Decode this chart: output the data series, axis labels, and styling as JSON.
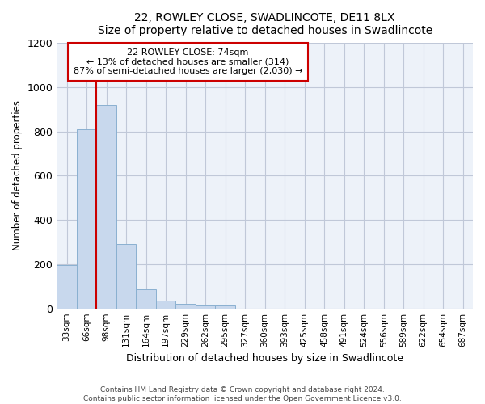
{
  "title": "22, ROWLEY CLOSE, SWADLINCOTE, DE11 8LX",
  "subtitle": "Size of property relative to detached houses in Swadlincote",
  "xlabel": "Distribution of detached houses by size in Swadlincote",
  "ylabel": "Number of detached properties",
  "bar_color": "#c8d8ed",
  "bar_edge_color": "#8ab0d0",
  "annotation_box_color": "#cc0000",
  "annotation_lines": [
    "22 ROWLEY CLOSE: 74sqm",
    "← 13% of detached houses are smaller (314)",
    "87% of semi-detached houses are larger (2,030) →"
  ],
  "footer1": "Contains HM Land Registry data © Crown copyright and database right 2024.",
  "footer2": "Contains public sector information licensed under the Open Government Licence v3.0.",
  "categories": [
    "33sqm",
    "66sqm",
    "98sqm",
    "131sqm",
    "164sqm",
    "197sqm",
    "229sqm",
    "262sqm",
    "295sqm",
    "327sqm",
    "360sqm",
    "393sqm",
    "425sqm",
    "458sqm",
    "491sqm",
    "524sqm",
    "556sqm",
    "589sqm",
    "622sqm",
    "654sqm",
    "687sqm"
  ],
  "values": [
    195,
    810,
    920,
    290,
    88,
    37,
    20,
    15,
    12,
    0,
    0,
    0,
    0,
    0,
    0,
    0,
    0,
    0,
    0,
    0,
    0
  ],
  "ylim": [
    0,
    1200
  ],
  "yticks": [
    0,
    200,
    400,
    600,
    800,
    1000,
    1200
  ],
  "bg_color": "#edf2f9",
  "grid_color": "#c0c8d8",
  "figsize": [
    6.0,
    5.0
  ],
  "dpi": 100
}
